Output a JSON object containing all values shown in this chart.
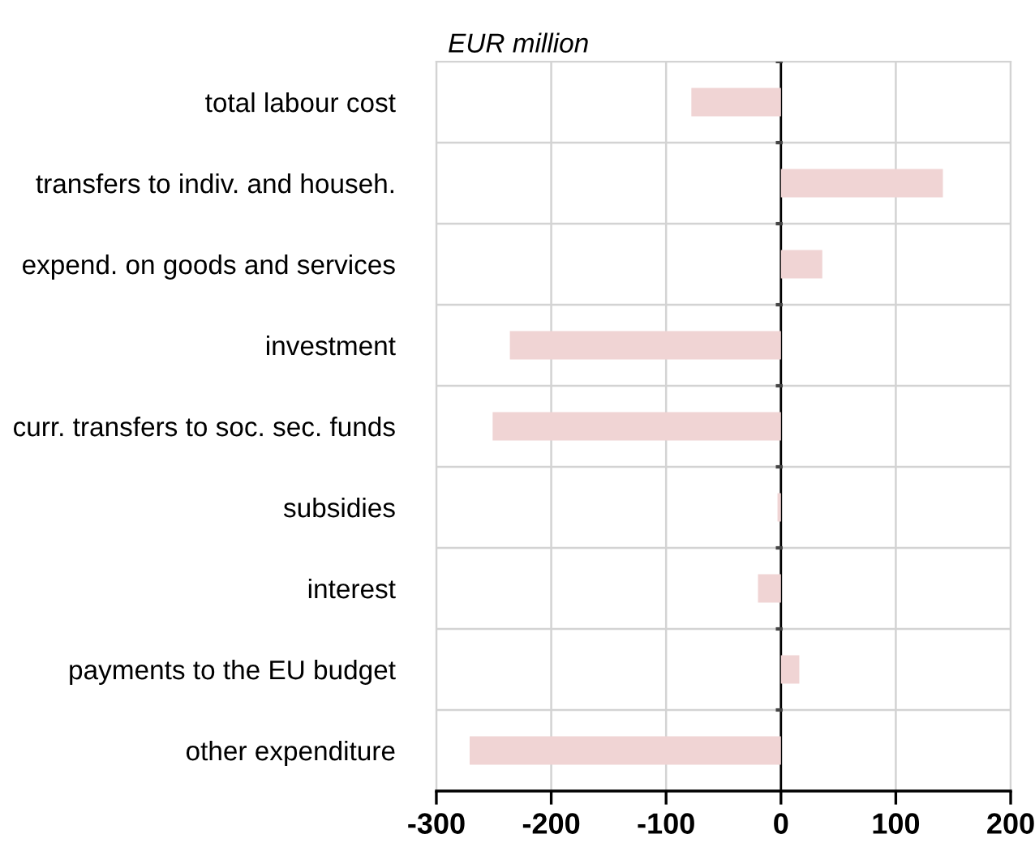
{
  "chart_data": {
    "type": "bar",
    "orientation": "horizontal",
    "xlabel": "EUR million",
    "categories": [
      "total labour cost",
      "transfers to indiv. and househ.",
      "expend. on goods and services",
      "investment",
      "curr. transfers to soc. sec. funds",
      "subsidies",
      "interest",
      "payments to the EU budget",
      "other expenditure"
    ],
    "values": [
      -78,
      141,
      36,
      -236,
      -251,
      -3,
      -20,
      16,
      -271
    ],
    "color": "#f0d4d4",
    "xlim": [
      -300,
      200
    ],
    "xticks": [
      -300,
      -200,
      -100,
      0,
      100,
      200
    ],
    "grid": true
  }
}
